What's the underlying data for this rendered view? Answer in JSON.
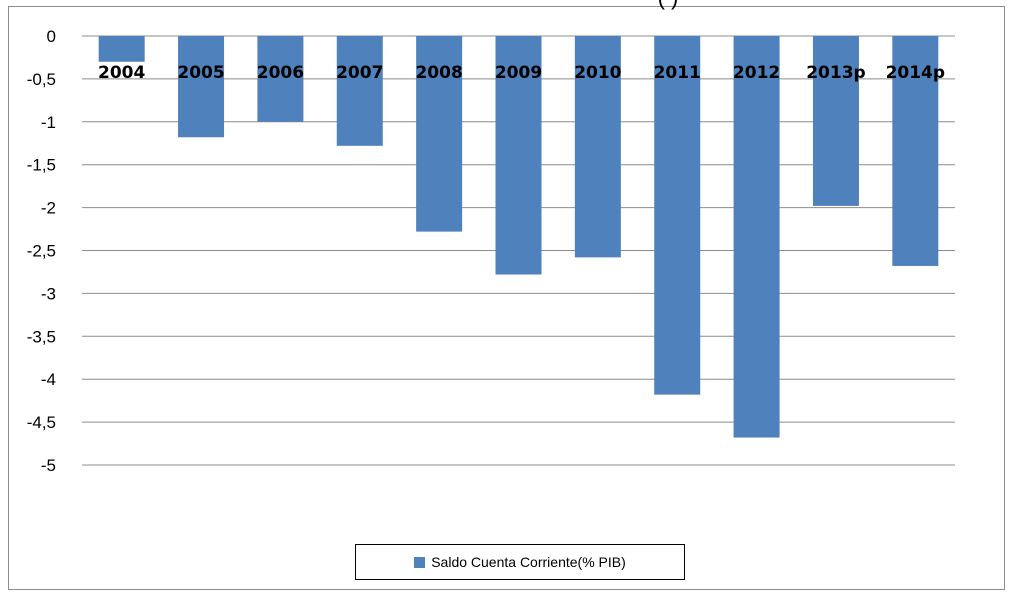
{
  "chart_data": {
    "type": "bar",
    "title_fragment": "( )",
    "categories": [
      "2004",
      "2005",
      "2006",
      "2007",
      "2008",
      "2009",
      "2010",
      "2011",
      "2012",
      "2013p",
      "2014p"
    ],
    "series": [
      {
        "name": "Saldo Cuenta Corriente(% PIB)",
        "values": [
          -0.3,
          -1.18,
          -1.0,
          -1.28,
          -2.28,
          -2.78,
          -2.58,
          -4.18,
          -4.68,
          -1.98,
          -2.68
        ],
        "color": "#4f81bd"
      }
    ],
    "yticks": [
      "0",
      "-0,5",
      "-1",
      "-1,5",
      "-2",
      "-2,5",
      "-3",
      "-3,5",
      "-4",
      "-4,5",
      "-5"
    ],
    "ylim": [
      -5,
      0
    ],
    "grid": true,
    "legend_position": "bottom"
  }
}
